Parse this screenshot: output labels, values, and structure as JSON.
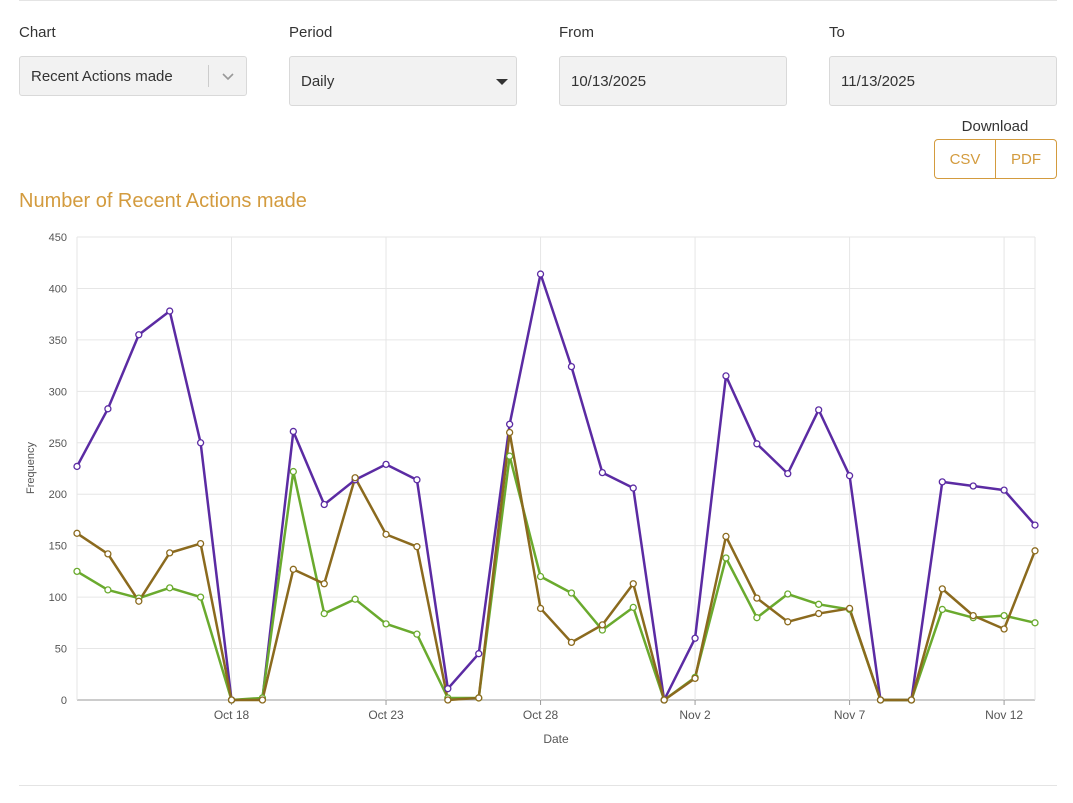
{
  "controls": {
    "chart_label": "Chart",
    "chart_value": "Recent Actions made",
    "period_label": "Period",
    "period_value": "Daily",
    "from_label": "From",
    "from_value": "10/13/2025",
    "to_label": "To",
    "to_value": "11/13/2025",
    "download_label": "Download",
    "csv_label": "CSV",
    "pdf_label": "PDF"
  },
  "colors": {
    "accent": "#d39b3e",
    "series": [
      "#5b2ba3",
      "#6aaa2e",
      "#8b6a1e"
    ]
  },
  "chart_data": {
    "type": "line",
    "title": "Number of Recent Actions made",
    "xlabel": "Date",
    "ylabel": "Frequency",
    "ylim": [
      0,
      450
    ],
    "yticks": [
      0,
      50,
      100,
      150,
      200,
      250,
      300,
      350,
      400,
      450
    ],
    "grid": true,
    "x": [
      "2025-10-13",
      "2025-10-14",
      "2025-10-15",
      "2025-10-16",
      "2025-10-17",
      "2025-10-18",
      "2025-10-19",
      "2025-10-20",
      "2025-10-21",
      "2025-10-22",
      "2025-10-23",
      "2025-10-24",
      "2025-10-25",
      "2025-10-26",
      "2025-10-27",
      "2025-10-28",
      "2025-10-29",
      "2025-10-30",
      "2025-10-31",
      "2025-11-01",
      "2025-11-02",
      "2025-11-03",
      "2025-11-04",
      "2025-11-05",
      "2025-11-06",
      "2025-11-07",
      "2025-11-08",
      "2025-11-09",
      "2025-11-10",
      "2025-11-11",
      "2025-11-12",
      "2025-11-13"
    ],
    "x_ticks": [
      {
        "date": "2025-10-18",
        "label": "Oct 18"
      },
      {
        "date": "2025-10-23",
        "label": "Oct 23"
      },
      {
        "date": "2025-10-28",
        "label": "Oct 28"
      },
      {
        "date": "2025-11-02",
        "label": "Nov 2"
      },
      {
        "date": "2025-11-07",
        "label": "Nov 7"
      },
      {
        "date": "2025-11-12",
        "label": "Nov 12"
      }
    ],
    "series": [
      {
        "values": [
          227,
          283,
          355,
          378,
          250,
          0,
          1,
          261,
          190,
          214,
          229,
          214,
          11,
          45,
          268,
          414,
          324,
          221,
          206,
          0,
          60,
          315,
          249,
          220,
          282,
          218,
          0,
          0,
          212,
          208,
          204,
          170
        ]
      },
      {
        "values": [
          125,
          107,
          99,
          109,
          100,
          0,
          2,
          222,
          84,
          98,
          74,
          64,
          2,
          2,
          237,
          120,
          104,
          68,
          90,
          0,
          22,
          138,
          80,
          103,
          93,
          88,
          0,
          0,
          88,
          80,
          82,
          75
        ]
      },
      {
        "values": [
          162,
          142,
          96,
          143,
          152,
          0,
          0,
          127,
          113,
          216,
          161,
          149,
          0,
          2,
          260,
          89,
          56,
          73,
          113,
          0,
          21,
          159,
          99,
          76,
          84,
          89,
          0,
          0,
          108,
          82,
          69,
          145
        ]
      }
    ]
  }
}
